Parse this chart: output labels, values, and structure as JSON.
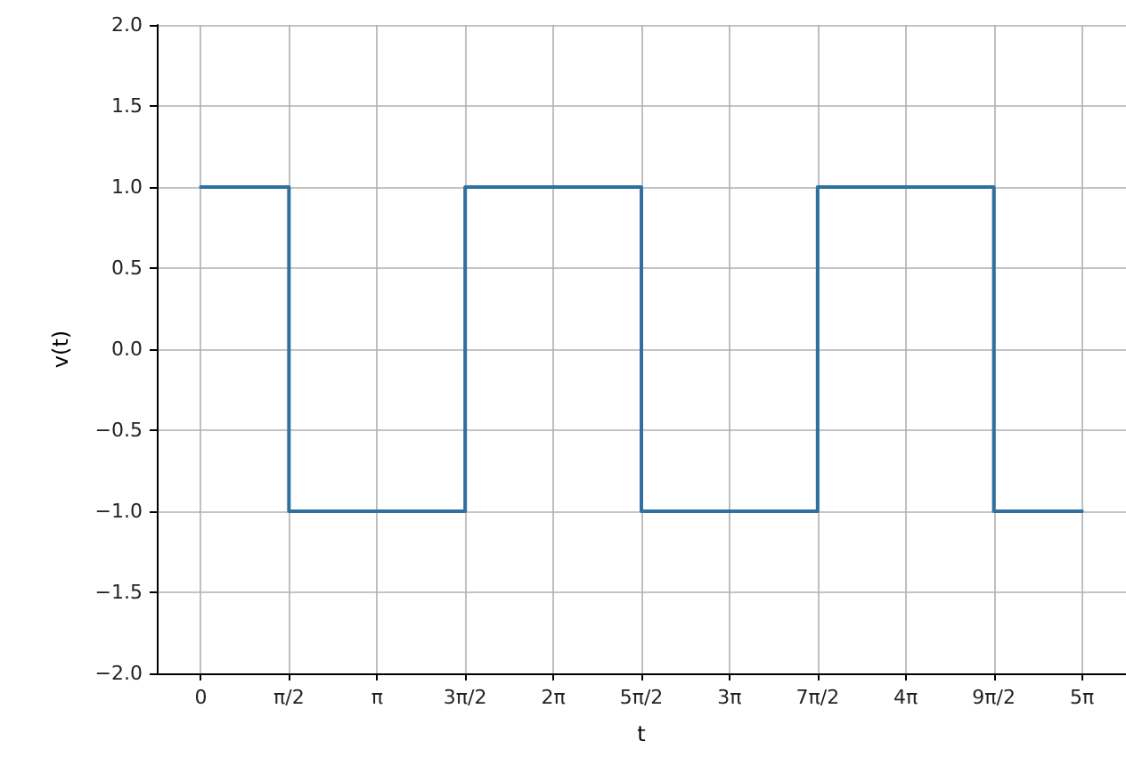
{
  "chart_data": {
    "type": "step",
    "xlabel": "t",
    "ylabel": "v(t)",
    "x": [
      0,
      1.5708,
      4.7124,
      7.854,
      10.9956,
      14.1372,
      15.708
    ],
    "series": [
      {
        "color": "#30709f",
        "values": [
          1,
          -1,
          1,
          -1,
          1,
          -1,
          -1
        ]
      }
    ],
    "xlim": [
      -0.785,
      16.493
    ],
    "xticks": [
      {
        "value": 0,
        "label": "0"
      },
      {
        "value": 1.5708,
        "label": "π/2"
      },
      {
        "value": 3.1416,
        "label": "π"
      },
      {
        "value": 4.7124,
        "label": "3π/2"
      },
      {
        "value": 6.2832,
        "label": "2π"
      },
      {
        "value": 7.854,
        "label": "5π/2"
      },
      {
        "value": 9.4248,
        "label": "3π"
      },
      {
        "value": 10.9956,
        "label": "7π/2"
      },
      {
        "value": 12.5664,
        "label": "4π"
      },
      {
        "value": 14.1372,
        "label": "9π/2"
      },
      {
        "value": 15.708,
        "label": "5π"
      }
    ],
    "ylim": [
      -2,
      2
    ],
    "yticks": [
      {
        "value": -2,
        "label": "−2.0"
      },
      {
        "value": -1.5,
        "label": "−1.5"
      },
      {
        "value": -1,
        "label": "−1.0"
      },
      {
        "value": -0.5,
        "label": "−0.5"
      },
      {
        "value": 0,
        "label": "0.0"
      },
      {
        "value": 0.5,
        "label": "0.5"
      },
      {
        "value": 1,
        "label": "1.0"
      },
      {
        "value": 1.5,
        "label": "1.5"
      },
      {
        "value": 2,
        "label": "2.0"
      }
    ],
    "grid": true,
    "marker": "none",
    "line_style": "solid"
  }
}
